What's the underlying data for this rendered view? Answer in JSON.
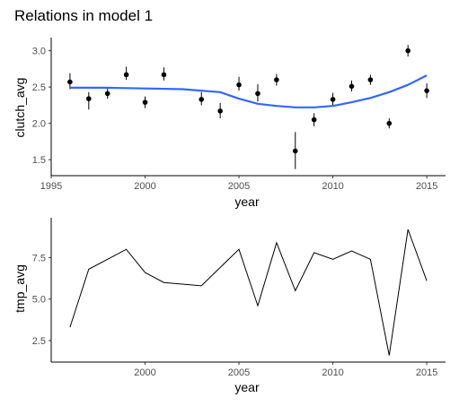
{
  "title": "Relations in model 1",
  "chart_data": [
    {
      "type": "scatter",
      "xlabel": "year",
      "ylabel": "clutch_avg",
      "xlim": [
        1995,
        2016
      ],
      "ylim": [
        1.28,
        3.18
      ],
      "xticks": [
        1995,
        2000,
        2005,
        2010,
        2015
      ],
      "xtick_labels": [
        "1995",
        "2000",
        "2005",
        "2010",
        "2015"
      ],
      "yticks": [
        1.5,
        2.0,
        2.5,
        3.0
      ],
      "ytick_labels": [
        "1.5",
        "2.0",
        "2.5",
        "3.0"
      ],
      "grid": false,
      "point_color": "#000000",
      "points": [
        {
          "x": 1996,
          "y": 2.57,
          "lo": 2.47,
          "hi": 2.69
        },
        {
          "x": 1997,
          "y": 2.34,
          "lo": 2.19,
          "hi": 2.43
        },
        {
          "x": 1998,
          "y": 2.41,
          "lo": 2.34,
          "hi": 2.49
        },
        {
          "x": 1999,
          "y": 2.67,
          "lo": 2.6,
          "hi": 2.78
        },
        {
          "x": 2000,
          "y": 2.29,
          "lo": 2.21,
          "hi": 2.37
        },
        {
          "x": 2001,
          "y": 2.67,
          "lo": 2.59,
          "hi": 2.77
        },
        {
          "x": 2003,
          "y": 2.33,
          "lo": 2.25,
          "hi": 2.43
        },
        {
          "x": 2004,
          "y": 2.17,
          "lo": 2.07,
          "hi": 2.28
        },
        {
          "x": 2005,
          "y": 2.53,
          "lo": 2.45,
          "hi": 2.64
        },
        {
          "x": 2006,
          "y": 2.41,
          "lo": 2.3,
          "hi": 2.54
        },
        {
          "x": 2007,
          "y": 2.6,
          "lo": 2.52,
          "hi": 2.68
        },
        {
          "x": 2008,
          "y": 1.62,
          "lo": 1.37,
          "hi": 1.88
        },
        {
          "x": 2009,
          "y": 2.05,
          "lo": 1.96,
          "hi": 2.14
        },
        {
          "x": 2010,
          "y": 2.33,
          "lo": 2.25,
          "hi": 2.42
        },
        {
          "x": 2011,
          "y": 2.51,
          "lo": 2.44,
          "hi": 2.59
        },
        {
          "x": 2012,
          "y": 2.6,
          "lo": 2.53,
          "hi": 2.67
        },
        {
          "x": 2013,
          "y": 2.0,
          "lo": 1.93,
          "hi": 2.07
        },
        {
          "x": 2014,
          "y": 3.0,
          "lo": 2.92,
          "hi": 3.08
        },
        {
          "x": 2015,
          "y": 2.45,
          "lo": 2.35,
          "hi": 2.55
        }
      ],
      "smooth": {
        "color": "#3366FF",
        "x": [
          1996,
          1998,
          2000,
          2002,
          2003,
          2004,
          2005,
          2006,
          2007,
          2008,
          2009,
          2010,
          2011,
          2012,
          2013,
          2014,
          2015
        ],
        "y": [
          2.49,
          2.49,
          2.48,
          2.47,
          2.45,
          2.43,
          2.34,
          2.27,
          2.24,
          2.22,
          2.22,
          2.24,
          2.29,
          2.35,
          2.43,
          2.53,
          2.66
        ]
      }
    },
    {
      "type": "line",
      "xlabel": "year",
      "ylabel": "tmp_avg",
      "xlim": [
        1995,
        2016
      ],
      "ylim": [
        1.2,
        9.9
      ],
      "xticks": [
        2000,
        2005,
        2010,
        2015
      ],
      "xtick_labels": [
        "2000",
        "2005",
        "2010",
        "2015"
      ],
      "yticks": [
        2.5,
        5.0,
        7.5
      ],
      "ytick_labels": [
        "2.5",
        "5.0",
        "7.5"
      ],
      "grid": false,
      "line_color": "#000000",
      "x": [
        1996,
        1997,
        1998,
        1999,
        2000,
        2001,
        2003,
        2004,
        2005,
        2006,
        2007,
        2008,
        2009,
        2010,
        2011,
        2012,
        2013,
        2014,
        2015
      ],
      "y": [
        3.3,
        6.8,
        7.4,
        8.0,
        6.6,
        6.0,
        5.8,
        6.9,
        8.0,
        4.6,
        8.4,
        5.5,
        7.8,
        7.4,
        7.9,
        7.4,
        1.6,
        9.2,
        6.1
      ]
    }
  ]
}
